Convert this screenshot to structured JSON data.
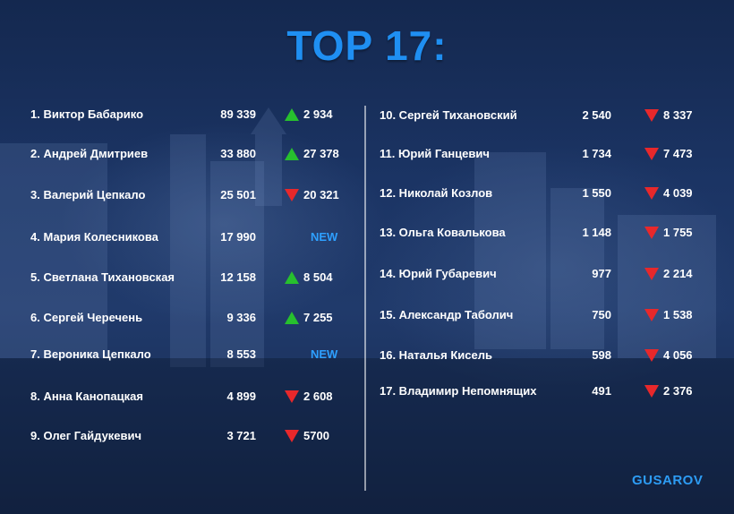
{
  "title": "TOP 17:",
  "brand": "GUSAROV",
  "colors": {
    "title": "#1f8ff2",
    "up": "#27c02e",
    "down": "#e8282b",
    "new": "#2ea0ff",
    "background": "#1b3464"
  },
  "left_column": [
    {
      "name": "1. Виктор Бабарико",
      "value": "89 339",
      "trend": "up",
      "change": "2 934"
    },
    {
      "name": "2. Андрей Дмитриев",
      "value": "33 880",
      "trend": "up",
      "change": "27 378"
    },
    {
      "name": "3. Валерий Цепкало",
      "value": "25 501",
      "trend": "down",
      "change": "20 321"
    },
    {
      "name": "4. Мария Колесникова",
      "value": "17 990",
      "trend": "new",
      "change": "NEW"
    },
    {
      "name": "5. Светлана Тихановская",
      "value": "12 158",
      "trend": "up",
      "change": "8 504"
    },
    {
      "name": "6. Сергей Черечень",
      "value": "9 336",
      "trend": "up",
      "change": "7 255"
    },
    {
      "name": "7. Вероника Цепкало",
      "value": "8 553",
      "trend": "new",
      "change": "NEW"
    },
    {
      "name": "8. Анна Канопацкая",
      "value": "4 899",
      "trend": "down",
      "change": "2 608"
    },
    {
      "name": "9. Олег Гайдукевич",
      "value": "3 721",
      "trend": "down",
      "change": "5700"
    }
  ],
  "right_column": [
    {
      "name": "10. Сергей Тихановский",
      "value": "2 540",
      "trend": "down",
      "change": "8 337"
    },
    {
      "name": "11. Юрий Ганцевич",
      "value": "1 734",
      "trend": "down",
      "change": "7 473"
    },
    {
      "name": "12. Николай Козлов",
      "value": "1 550",
      "trend": "down",
      "change": "4 039"
    },
    {
      "name": "13. Ольга Ковалькова",
      "value": "1 148",
      "trend": "down",
      "change": "1 755"
    },
    {
      "name": "14. Юрий Губаревич",
      "value": "977",
      "trend": "down",
      "change": "2 214"
    },
    {
      "name": "15. Александр Таболич",
      "value": "750",
      "trend": "down",
      "change": "1 538"
    },
    {
      "name": "16. Наталья Кисель",
      "value": "598",
      "trend": "down",
      "change": "4 056"
    },
    {
      "name": "17. Владимир Непомнящих",
      "value": "491",
      "trend": "down",
      "change": "2 376"
    }
  ]
}
